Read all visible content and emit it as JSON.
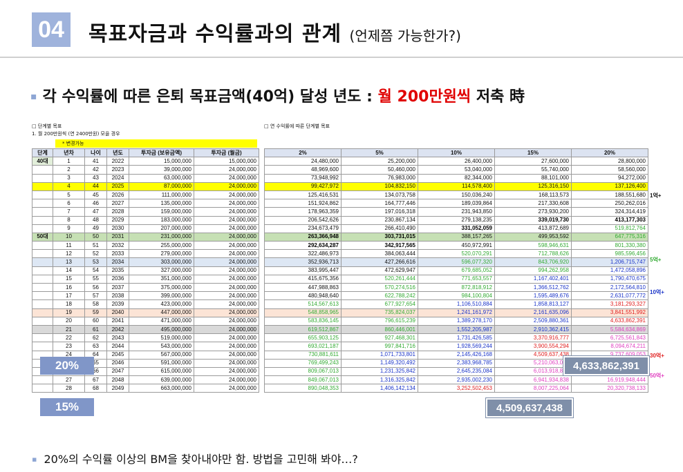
{
  "header": {
    "num": "04",
    "title": "목표자금과 수익률과의 관계",
    "sub": "(언제쯤 가능한가?)"
  },
  "subtitle": {
    "bullet": "▪",
    "pre": "각 수익률에 따른 은퇴 목표금액(40억) 달성 년도 : ",
    "red": "월 200만원씩",
    "post": " 저축 時"
  },
  "notes": {
    "left1": "□ 단계별 목표",
    "left2": "1. 월 200만원씩 (연 2400만원) 모을 경우",
    "right1": "□ 연 수익률에 따른 단계별 목표",
    "yellow": "* 변경가능"
  },
  "left_headers": [
    "단계",
    "년차",
    "나이",
    "년도",
    "투자금 (보유금액)",
    "투자금 (월금)"
  ],
  "right_headers": [
    "2%",
    "5%",
    "10%",
    "15%",
    "20%"
  ],
  "rows": [
    {
      "stage": "40대",
      "n": "1",
      "age": "41",
      "yr": "2022",
      "a": "15,000,000",
      "b": "15,000,000",
      "v": [
        "24,480,000",
        "25,200,000",
        "26,400,000",
        "27,600,000",
        "28,800,000"
      ]
    },
    {
      "stage": "",
      "n": "2",
      "age": "42",
      "yr": "2023",
      "a": "39,000,000",
      "b": "24,000,000",
      "v": [
        "48,969,600",
        "50,460,000",
        "53,040,000",
        "55,740,000",
        "58,560,000"
      ]
    },
    {
      "stage": "",
      "n": "3",
      "age": "43",
      "yr": "2024",
      "a": "63,000,000",
      "b": "24,000,000",
      "v": [
        "73,948,992",
        "76,983,000",
        "82,344,000",
        "88,101,000",
        "94,272,000"
      ]
    },
    {
      "stage": "",
      "n": "4",
      "age": "44",
      "yr": "2025",
      "a": "87,000,000",
      "b": "24,000,000",
      "v": [
        "99,427,972",
        "104,832,150",
        "114,578,400",
        "125,316,150",
        "137,126,400"
      ]
    },
    {
      "stage": "",
      "n": "5",
      "age": "45",
      "yr": "2026",
      "a": "111,000,000",
      "b": "24,000,000",
      "v": [
        "125,416,531",
        "134,073,758",
        "150,036,240",
        "168,113,573",
        "188,551,680"
      ]
    },
    {
      "stage": "",
      "n": "6",
      "age": "46",
      "yr": "2027",
      "a": "135,000,000",
      "b": "24,000,000",
      "v": [
        "151,924,862",
        "164,777,446",
        "189,039,864",
        "217,330,608",
        "250,262,016"
      ]
    },
    {
      "stage": "",
      "n": "7",
      "age": "47",
      "yr": "2028",
      "a": "159,000,000",
      "b": "24,000,000",
      "v": [
        "178,963,359",
        "197,016,318",
        "231,943,850",
        "273,930,200",
        "324,314,419"
      ]
    },
    {
      "stage": "",
      "n": "8",
      "age": "48",
      "yr": "2029",
      "a": "183,000,000",
      "b": "24,000,000",
      "v": [
        "206,542,626",
        "230,867,134",
        "279,138,235",
        "339,019,730",
        "413,177,303"
      ]
    },
    {
      "stage": "",
      "n": "9",
      "age": "49",
      "yr": "2030",
      "a": "207,000,000",
      "b": "24,000,000",
      "v": [
        "234,673,479",
        "266,410,490",
        "331,052,059",
        "413,872,689",
        "519,812,764"
      ]
    },
    {
      "stage": "50대",
      "n": "10",
      "age": "50",
      "yr": "2031",
      "a": "231,000,000",
      "b": "24,000,000",
      "v": [
        "263,366,948",
        "303,731,015",
        "388,157,265",
        "499,953,592",
        "647,775,316"
      ]
    },
    {
      "stage": "",
      "n": "11",
      "age": "51",
      "yr": "2032",
      "a": "255,000,000",
      "b": "24,000,000",
      "v": [
        "292,634,287",
        "342,917,565",
        "450,972,991",
        "598,946,631",
        "801,330,380"
      ]
    },
    {
      "stage": "",
      "n": "12",
      "age": "52",
      "yr": "2033",
      "a": "279,000,000",
      "b": "24,000,000",
      "v": [
        "322,486,973",
        "384,063,444",
        "520,070,291",
        "712,788,626",
        "985,596,456"
      ]
    },
    {
      "stage": "",
      "n": "13",
      "age": "53",
      "yr": "2034",
      "a": "303,000,000",
      "b": "24,000,000",
      "v": [
        "352,936,713",
        "427,266,616",
        "596,077,320",
        "843,706,920",
        "1,206,715,747"
      ]
    },
    {
      "stage": "",
      "n": "14",
      "age": "54",
      "yr": "2035",
      "a": "327,000,000",
      "b": "24,000,000",
      "v": [
        "383,995,447",
        "472,629,947",
        "679,685,052",
        "994,262,958",
        "1,472,058,896"
      ]
    },
    {
      "stage": "",
      "n": "15",
      "age": "55",
      "yr": "2036",
      "a": "351,000,000",
      "b": "24,000,000",
      "v": [
        "415,675,356",
        "520,261,444",
        "771,653,557",
        "1,167,402,401",
        "1,790,470,675"
      ]
    },
    {
      "stage": "",
      "n": "16",
      "age": "56",
      "yr": "2037",
      "a": "375,000,000",
      "b": "24,000,000",
      "v": [
        "447,988,863",
        "570,274,516",
        "872,818,912",
        "1,366,512,762",
        "2,172,564,810"
      ]
    },
    {
      "stage": "",
      "n": "17",
      "age": "57",
      "yr": "2038",
      "a": "399,000,000",
      "b": "24,000,000",
      "v": [
        "480,948,640",
        "622,788,242",
        "984,100,804",
        "1,595,489,676",
        "2,631,077,772"
      ]
    },
    {
      "stage": "",
      "n": "18",
      "age": "58",
      "yr": "2039",
      "a": "423,000,000",
      "b": "24,000,000",
      "v": [
        "514,567,613",
        "677,927,654",
        "1,106,510,884",
        "1,858,813,127",
        "3,181,293,327"
      ]
    },
    {
      "stage": "",
      "n": "19",
      "age": "59",
      "yr": "2040",
      "a": "447,000,000",
      "b": "24,000,000",
      "v": [
        "548,858,965",
        "735,824,037",
        "1,241,161,972",
        "2,161,635,096",
        "3,841,551,992"
      ]
    },
    {
      "stage": "",
      "n": "20",
      "age": "60",
      "yr": "2041",
      "a": "471,000,000",
      "b": "24,000,000",
      "v": [
        "583,836,145",
        "796,615,239",
        "1,389,278,170",
        "2,509,880,361",
        "4,633,862,391"
      ]
    },
    {
      "stage": "",
      "n": "21",
      "age": "61",
      "yr": "2042",
      "a": "495,000,000",
      "b": "24,000,000",
      "v": [
        "619,512,867",
        "860,446,001",
        "1,552,205,987",
        "2,910,362,415",
        "5,584,634,869"
      ]
    },
    {
      "stage": "",
      "n": "22",
      "age": "62",
      "yr": "2043",
      "a": "519,000,000",
      "b": "24,000,000",
      "v": [
        "655,903,125",
        "927,468,301",
        "1,731,426,585",
        "3,370,916,777",
        "6,725,561,843"
      ]
    },
    {
      "stage": "",
      "n": "23",
      "age": "63",
      "yr": "2044",
      "a": "543,000,000",
      "b": "24,000,000",
      "v": [
        "693,021,187",
        "997,841,716",
        "1,928,569,244",
        "3,900,554,294",
        "8,094,674,211"
      ]
    },
    {
      "stage": "",
      "n": "24",
      "age": "64",
      "yr": "2045",
      "a": "567,000,000",
      "b": "24,000,000",
      "v": [
        "730,881,611",
        "1,071,733,801",
        "2,145,426,168",
        "4,509,637,438",
        "9,737,609,053"
      ]
    },
    {
      "stage": "",
      "n": "25",
      "age": "65",
      "yr": "2046",
      "a": "591,000,000",
      "b": "24,000,000",
      "v": [
        "769,499,243",
        "1,149,320,492",
        "2,383,968,785",
        "5,210,063,053",
        "11,709,130,864"
      ]
    },
    {
      "stage": "",
      "n": "26",
      "age": "66",
      "yr": "2047",
      "a": "615,000,000",
      "b": "24,000,000",
      "v": [
        "809,067,013",
        "1,231,325,842",
        "2,645,235,084",
        "6,013,918,813",
        "14,097,237,037"
      ]
    },
    {
      "stage": "",
      "n": "27",
      "age": "67",
      "yr": "2048",
      "a": "639,000,000",
      "b": "24,000,000",
      "v": [
        "849,067,013",
        "1,316,325,842",
        "2,935,002,230",
        "6,941,934,838",
        "16,919,948,444"
      ]
    },
    {
      "stage": "",
      "n": "28",
      "age": "68",
      "yr": "2049",
      "a": "663,000,000",
      "b": "24,000,000",
      "v": [
        "890,048,353",
        "1,406,142,134",
        "3,252,502,453",
        "8,007,225,064",
        "20,320,738,133"
      ]
    }
  ],
  "side_labels": [
    "1억+",
    "5억+",
    "10억+",
    "30억+",
    "50억+"
  ],
  "callouts": {
    "p20": "20%",
    "p15": "15%",
    "big20": "4,633,862,391",
    "big15": "4,509,637,438"
  },
  "bottom": {
    "bullet": "▪",
    "text": "20%의 수익률 이상의 BM을 찾아내야만 함. 방법을 고민해 봐야…?"
  },
  "colors": {
    "accent": "#9fb3dc",
    "red": "#e00000",
    "yellow": "#ffff00",
    "green_row": "#c6e0b4",
    "blue_row": "#dde7f4",
    "orange_row": "#fce4d6",
    "gray_row": "#d9d9d9",
    "green_text": "#33aa33",
    "blue_text": "#1a34c8",
    "red_text": "#e02020",
    "pink_text": "#e040c0"
  }
}
